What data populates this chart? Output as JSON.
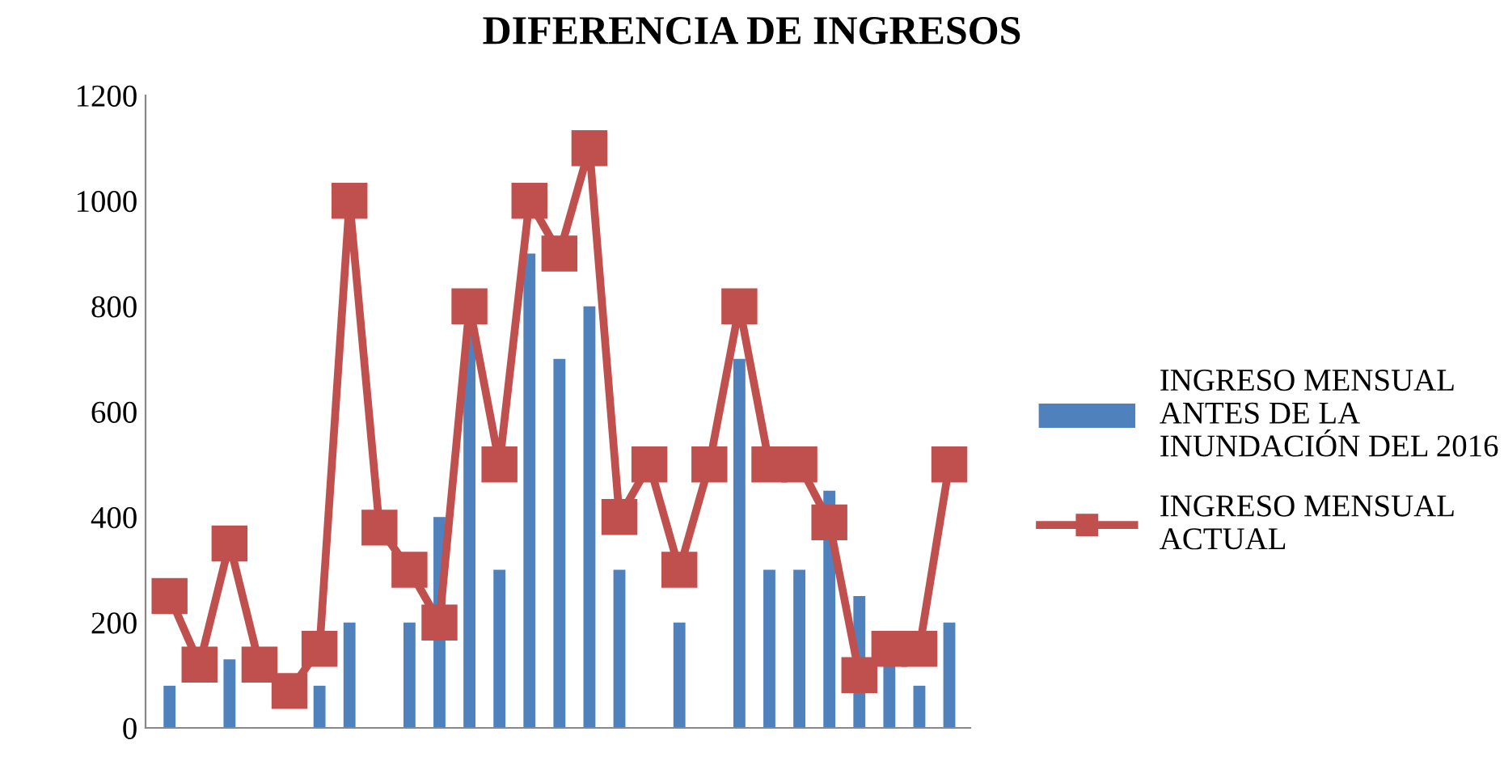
{
  "chart_data": {
    "type": "bar",
    "title": "DIFERENCIA DE INGRESOS",
    "categories": [
      null,
      null,
      null,
      null,
      null,
      null,
      null,
      null,
      null,
      null,
      null,
      null,
      null,
      null,
      null,
      null,
      null,
      null,
      null,
      null,
      null,
      null,
      null,
      null,
      null,
      null,
      null
    ],
    "series": [
      {
        "name": "INGRESO MENSUAL ANTES DE LA INUNDACIÓN DEL 2016",
        "color": "#4f81bd",
        "values": [
          80,
          null,
          130,
          null,
          null,
          80,
          200,
          null,
          200,
          400,
          750,
          300,
          900,
          700,
          800,
          300,
          null,
          200,
          null,
          700,
          300,
          300,
          450,
          250,
          120,
          80,
          200
        ]
      },
      {
        "name": "INGRESO MENSUAL ACTUAL",
        "color": "#c0504d",
        "type": "line",
        "marker": "square",
        "values": [
          250,
          120,
          350,
          120,
          70,
          150,
          1000,
          380,
          300,
          200,
          800,
          500,
          1000,
          900,
          1100,
          400,
          500,
          300,
          500,
          800,
          500,
          500,
          390,
          100,
          150,
          150,
          500
        ]
      }
    ],
    "ylim": [
      0,
      1200
    ],
    "yticks": [
      0,
      200,
      400,
      600,
      800,
      1000,
      1200
    ],
    "grid": false,
    "legend": "right"
  }
}
